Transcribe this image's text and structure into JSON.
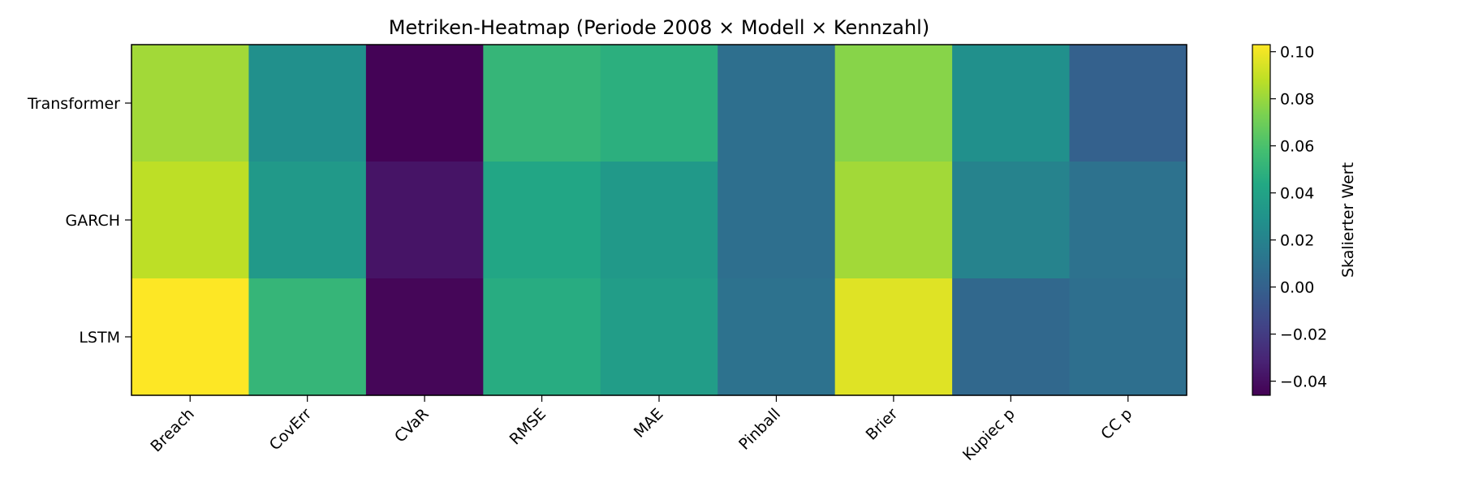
{
  "chart_data": {
    "type": "heatmap",
    "title": "Metriken-Heatmap (Periode 2008 × Modell × Kennzahl)",
    "rows": [
      "Transformer",
      "GARCH",
      "LSTM"
    ],
    "columns": [
      "Breach",
      "CovErr",
      "CVaR",
      "RMSE",
      "MAE",
      "Pinball",
      "Brier",
      "Kupiec p",
      "CC p"
    ],
    "values": [
      [
        0.082,
        0.028,
        -0.045,
        0.052,
        0.048,
        0.008,
        0.076,
        0.028,
        0.0
      ],
      [
        0.088,
        0.034,
        -0.038,
        0.042,
        0.034,
        0.008,
        0.082,
        0.02,
        0.01
      ],
      [
        0.103,
        0.052,
        -0.044,
        0.046,
        0.036,
        0.01,
        0.096,
        0.004,
        0.008
      ]
    ],
    "colorbar": {
      "label": "Skalierter Wert",
      "min": -0.046,
      "max": 0.103,
      "ticks": [
        -0.04,
        -0.02,
        0.0,
        0.02,
        0.04,
        0.06,
        0.08,
        0.1
      ],
      "tick_labels": [
        "−0.04",
        "−0.02",
        "0.00",
        "0.02",
        "0.04",
        "0.06",
        "0.08",
        "0.10"
      ]
    },
    "colormap": "viridis",
    "xlabel": "",
    "ylabel": ""
  }
}
